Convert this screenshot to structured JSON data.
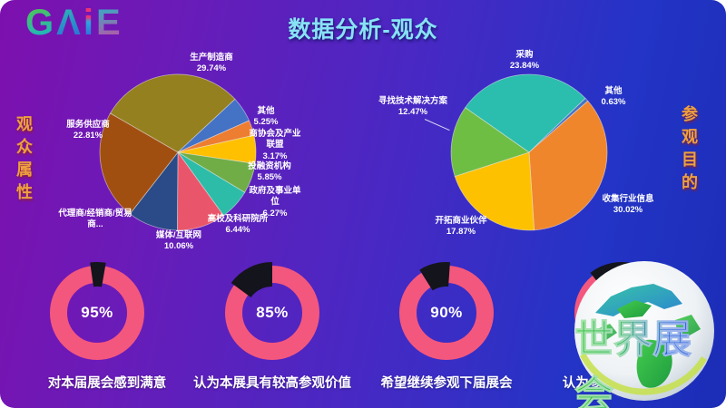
{
  "logo": {
    "letters": [
      "G",
      "Λ",
      "i",
      "E"
    ]
  },
  "title": "数据分析-观众",
  "left_section_label": "观众属性",
  "right_section_label": "参观目的",
  "watermark": {
    "text": "世界展会",
    "icon": "globe"
  },
  "chart_data": [
    {
      "type": "pie",
      "title": "观众属性",
      "legend_position": "outside-labels",
      "start_angle": -60,
      "slices": [
        {
          "label": "生产制造商",
          "pct_label": "29.74%",
          "value": 29.74,
          "color": "#94801F"
        },
        {
          "label": "其他",
          "pct_label": "5.25%",
          "value": 5.25,
          "color": "#4472C4"
        },
        {
          "label": "商协会及产业联盟",
          "pct_label": "3.17%",
          "value": 3.17,
          "color": "#ED7D31"
        },
        {
          "label": "投融资机构",
          "pct_label": "5.85%",
          "value": 5.85,
          "color": "#FFC000"
        },
        {
          "label": "政府及事业单位",
          "pct_label": "6.27%",
          "value": 6.27,
          "color": "#70AD47"
        },
        {
          "label": "高校及科研院所",
          "pct_label": "6.44%",
          "value": 6.44,
          "color": "#2CBCA8"
        },
        {
          "label": "媒体/互联网",
          "pct_label": "10.06%",
          "value": 10.06,
          "color": "#E9566B"
        },
        {
          "label": "代理商/经销商/贸易商...",
          "pct_label": "",
          "value": 10.41,
          "color": "#2A4B87"
        },
        {
          "label": "服务供应商",
          "pct_label": "22.81%",
          "value": 22.81,
          "color": "#A14F10"
        }
      ]
    },
    {
      "type": "pie",
      "title": "参观目的",
      "legend_position": "outside-labels",
      "start_angle": -55,
      "slices": [
        {
          "label": "采购",
          "pct_label": "23.84%",
          "value": 23.84,
          "color": "#2BBDAD"
        },
        {
          "label": "其他",
          "pct_label": "0.63%",
          "value": 0.63,
          "color": "#4472C4"
        },
        {
          "label": "收集行业信息",
          "pct_label": "30.02%",
          "value": 30.02,
          "color": "#F0862B"
        },
        {
          "label": "开拓商业伙伴",
          "pct_label": "17.87%",
          "value": 17.87,
          "color": "#FDC100"
        },
        {
          "label": "寻找技术解决方案",
          "pct_label": "12.47%",
          "value": 12.47,
          "color": "#6FBE44"
        }
      ]
    },
    {
      "type": "donut",
      "ring_color": "#F4577D",
      "gap_color": "#14141C",
      "items": [
        {
          "percent": "95%",
          "value": 95,
          "caption": "对本届展会感到满意",
          "gap_start": -8,
          "gap_end": 10
        },
        {
          "percent": "85%",
          "value": 85,
          "caption": "认为本展具有较高参观价值",
          "gap_start": -54,
          "gap_end": 0
        },
        {
          "percent": "90%",
          "value": 90,
          "caption": "希望继续参观下届展会",
          "gap_start": -32,
          "gap_end": 4
        },
        {
          "percent": "",
          "value": null,
          "caption": "认为参展商质量较高",
          "gap_start": -38,
          "gap_end": 16
        }
      ]
    }
  ]
}
